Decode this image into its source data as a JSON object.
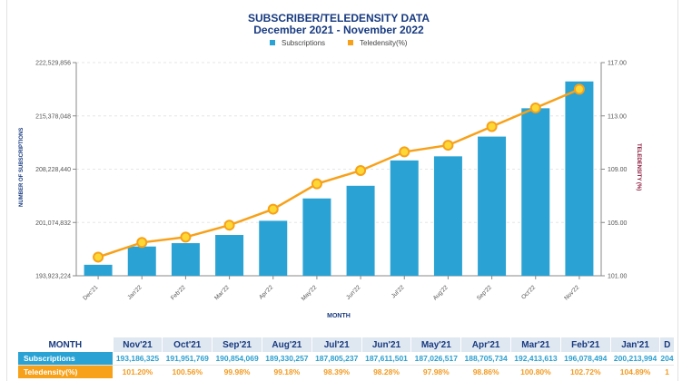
{
  "chart_data": {
    "type": "bar+line",
    "title": "SUBSCRIBER/TELEDENSITY DATA",
    "subtitle": "December 2021 - November 2022",
    "legend": [
      "Subscriptions",
      "Teledensity(%)"
    ],
    "legend_position": "top-center",
    "xlabel": "MONTH",
    "ylabel_left": "NUMBER OF SUBSCRIPTIONS",
    "ylabel_right": "TELEDENSITY (%)",
    "categories": [
      "Dec'21",
      "Jan'22",
      "Feb'22",
      "Mar'22",
      "Apr'22",
      "May'22",
      "Jun'22",
      "Jul'22",
      "Aug'22",
      "Sep'22",
      "Oct'22",
      "Nov'22"
    ],
    "left_axis": {
      "min": 193923224,
      "max": 222529856,
      "ticks": [
        193923224,
        201074832,
        208228440,
        215378048,
        222529856
      ],
      "tick_labels": [
        "193,923,224",
        "201,074,832",
        "208,228,440",
        "215,378,048",
        "222,529,856"
      ]
    },
    "right_axis": {
      "min": 101,
      "max": 117,
      "ticks": [
        101,
        105,
        109,
        113,
        117
      ],
      "tick_labels": [
        "101.00",
        "105.00",
        "109.00",
        "113.00",
        "117.00"
      ]
    },
    "grid": true,
    "series": [
      {
        "name": "Subscriptions",
        "type": "bar",
        "color": "#2aa3d4",
        "values": [
          195400000,
          197850000,
          198300000,
          199400000,
          201300000,
          204300000,
          206000000,
          209400000,
          209950000,
          212600000,
          216400000,
          220000000
        ]
      },
      {
        "name": "Teledensity(%)",
        "type": "line",
        "color": "#f7a11a",
        "values": [
          102.4,
          103.5,
          103.9,
          104.8,
          106.0,
          107.9,
          108.9,
          110.3,
          110.8,
          112.2,
          113.6,
          115.0
        ]
      }
    ]
  },
  "table": {
    "header_label": "MONTH",
    "months": [
      "Nov'21",
      "Oct'21",
      "Sep'21",
      "Aug'21",
      "Jul'21",
      "Jun'21",
      "May'21",
      "Apr'21",
      "Mar'21",
      "Feb'21",
      "Jan'21",
      "D"
    ],
    "rows": [
      {
        "label": "Subscriptions",
        "values": [
          "193,186,325",
          "191,951,769",
          "190,854,069",
          "189,330,257",
          "187,805,237",
          "187,611,501",
          "187,026,517",
          "188,705,734",
          "192,413,613",
          "196,078,494",
          "200,213,994",
          "204"
        ]
      },
      {
        "label": "Teledensity(%)",
        "values": [
          "101.20%",
          "100.56%",
          "99.98%",
          "99.18%",
          "98.39%",
          "98.28%",
          "97.98%",
          "98.86%",
          "100.80%",
          "102.72%",
          "104.89%",
          "1"
        ]
      }
    ]
  },
  "colors": {
    "title": "#173a80",
    "bar": "#2aa3d4",
    "line": "#f7a11a",
    "marker_fill": "#fdd835",
    "right_axis_title": "#8a1538"
  }
}
